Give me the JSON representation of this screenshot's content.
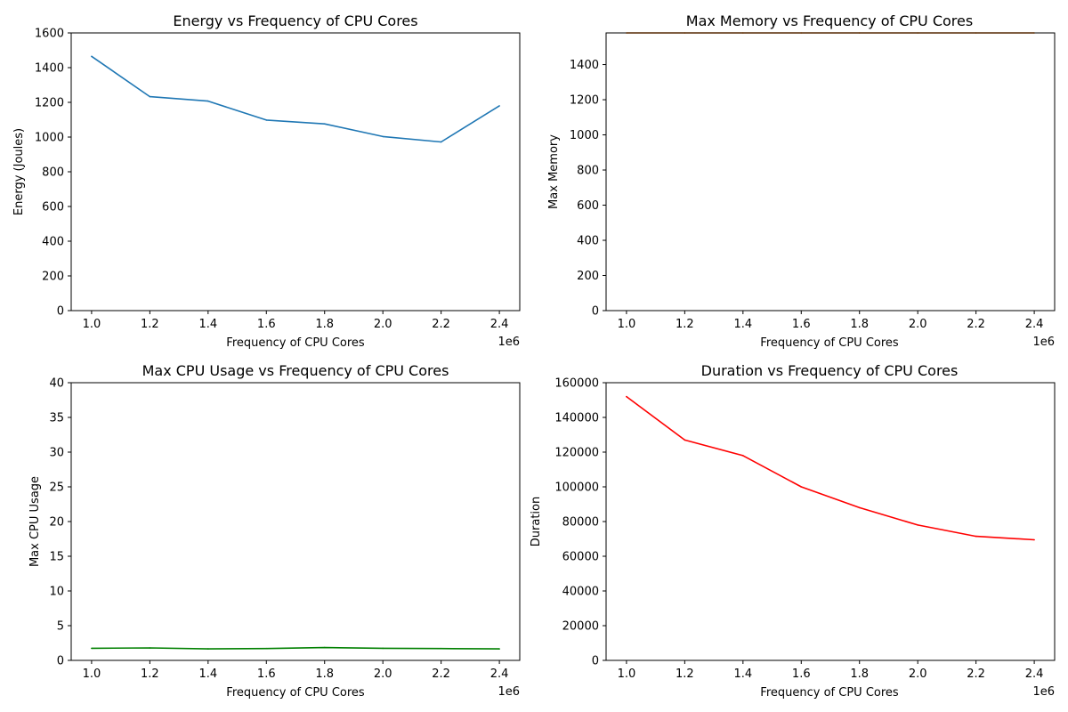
{
  "chart_data": [
    {
      "type": "line",
      "title": "Energy vs Frequency of CPU Cores",
      "xlabel": "Frequency of CPU Cores",
      "ylabel": "Energy (Joules)",
      "x_offset_text": "1e6",
      "xlim": [
        0.93,
        2.47
      ],
      "ylim": [
        0,
        1600
      ],
      "xticks": [
        1.0,
        1.2,
        1.4,
        1.6,
        1.8,
        2.0,
        2.2,
        2.4
      ],
      "xtick_labels": [
        "1.0",
        "1.2",
        "1.4",
        "1.6",
        "1.8",
        "2.0",
        "2.2",
        "2.4"
      ],
      "yticks": [
        0,
        200,
        400,
        600,
        800,
        1000,
        1200,
        1400,
        1600
      ],
      "ytick_labels": [
        "0",
        "200",
        "400",
        "600",
        "800",
        "1000",
        "1200",
        "1400",
        "1600"
      ],
      "grid": false,
      "series": [
        {
          "color": "#1f77b4",
          "x": [
            1000000,
            1200000,
            1400000,
            1600000,
            1800000,
            2000000,
            2200000,
            2400000
          ],
          "y": [
            1465,
            1233,
            1207,
            1098,
            1076,
            1003,
            972,
            1180
          ]
        }
      ]
    },
    {
      "type": "line",
      "title": "Max Memory vs Frequency of CPU Cores",
      "xlabel": "Frequency of CPU Cores",
      "ylabel": "Max Memory",
      "x_offset_text": "1e6",
      "xlim": [
        0.93,
        2.47
      ],
      "ylim": [
        0,
        1580
      ],
      "xticks": [
        1.0,
        1.2,
        1.4,
        1.6,
        1.8,
        2.0,
        2.2,
        2.4
      ],
      "xtick_labels": [
        "1.0",
        "1.2",
        "1.4",
        "1.6",
        "1.8",
        "2.0",
        "2.2",
        "2.4"
      ],
      "yticks": [
        0,
        200,
        400,
        600,
        800,
        1000,
        1200,
        1400
      ],
      "ytick_labels": [
        "0",
        "200",
        "400",
        "600",
        "800",
        "1000",
        "1200",
        "1400"
      ],
      "grid": false,
      "series": [
        {
          "color": "#ff7f0e",
          "x": [
            1000000,
            1200000,
            1400000,
            1600000,
            1800000,
            2000000,
            2200000,
            2400000
          ],
          "y": [
            1580,
            1580,
            1580,
            1580,
            1580,
            1580,
            1580,
            1580
          ]
        }
      ]
    },
    {
      "type": "line",
      "title": "Max CPU Usage vs Frequency of CPU Cores",
      "xlabel": "Frequency of CPU Cores",
      "ylabel": "Max CPU Usage",
      "x_offset_text": "1e6",
      "xlim": [
        0.93,
        2.47
      ],
      "ylim": [
        0,
        40
      ],
      "xticks": [
        1.0,
        1.2,
        1.4,
        1.6,
        1.8,
        2.0,
        2.2,
        2.4
      ],
      "xtick_labels": [
        "1.0",
        "1.2",
        "1.4",
        "1.6",
        "1.8",
        "2.0",
        "2.2",
        "2.4"
      ],
      "yticks": [
        0,
        5,
        10,
        15,
        20,
        25,
        30,
        35,
        40
      ],
      "ytick_labels": [
        "0",
        "5",
        "10",
        "15",
        "20",
        "25",
        "30",
        "35",
        "40"
      ],
      "grid": false,
      "series": [
        {
          "color": "#008000",
          "x": [
            1000000,
            1200000,
            1400000,
            1600000,
            1800000,
            2000000,
            2200000,
            2400000
          ],
          "y": [
            1.75,
            1.8,
            1.65,
            1.7,
            1.85,
            1.75,
            1.7,
            1.65
          ]
        }
      ]
    },
    {
      "type": "line",
      "title": "Duration vs Frequency of CPU Cores",
      "xlabel": "Frequency of CPU Cores",
      "ylabel": "Duration",
      "x_offset_text": "1e6",
      "xlim": [
        0.93,
        2.47
      ],
      "ylim": [
        0,
        160000
      ],
      "xticks": [
        1.0,
        1.2,
        1.4,
        1.6,
        1.8,
        2.0,
        2.2,
        2.4
      ],
      "xtick_labels": [
        "1.0",
        "1.2",
        "1.4",
        "1.6",
        "1.8",
        "2.0",
        "2.2",
        "2.4"
      ],
      "yticks": [
        0,
        20000,
        40000,
        60000,
        80000,
        100000,
        120000,
        140000,
        160000
      ],
      "ytick_labels": [
        "0",
        "20000",
        "40000",
        "60000",
        "80000",
        "100000",
        "120000",
        "140000",
        "160000"
      ],
      "grid": false,
      "series": [
        {
          "color": "#ff0000",
          "x": [
            1000000,
            1200000,
            1400000,
            1600000,
            1800000,
            2000000,
            2200000,
            2400000
          ],
          "y": [
            152000,
            127000,
            118000,
            100000,
            88000,
            78000,
            71500,
            69500
          ]
        }
      ]
    }
  ]
}
